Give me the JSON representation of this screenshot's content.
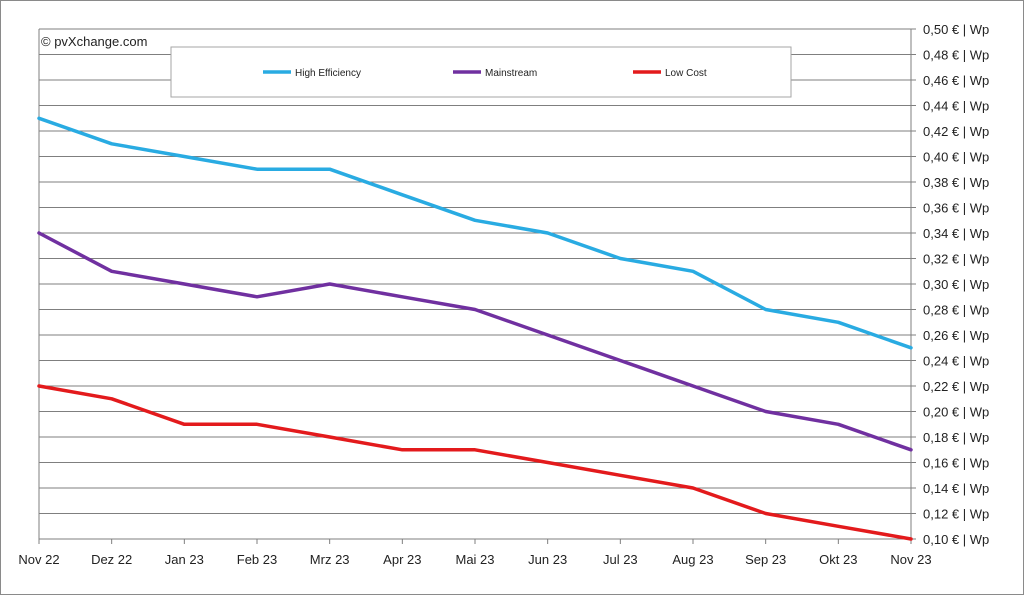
{
  "watermark": "© pvXchange.com",
  "chart_data": {
    "type": "line",
    "categories": [
      "Nov 22",
      "Dez 22",
      "Jan 23",
      "Feb 23",
      "Mrz 23",
      "Apr 23",
      "Mai 23",
      "Jun 23",
      "Jul 23",
      "Aug 23",
      "Sep 23",
      "Okt 23",
      "Nov 23"
    ],
    "y_ticks": [
      "0,10 € | Wp",
      "0,12 € | Wp",
      "0,14 € | Wp",
      "0,16 € | Wp",
      "0,18 € | Wp",
      "0,20 € | Wp",
      "0,22 € | Wp",
      "0,24 € | Wp",
      "0,26 € | Wp",
      "0,28 € | Wp",
      "0,30 € | Wp",
      "0,32 € | Wp",
      "0,34 € | Wp",
      "0,36 € | Wp",
      "0,38 € | Wp",
      "0,40 € | Wp",
      "0,42 € | Wp",
      "0,44 € | Wp",
      "0,46 € | Wp",
      "0,48 € | Wp",
      "0,50 € | Wp"
    ],
    "ylim": [
      0.1,
      0.5
    ],
    "y_axis_side": "right",
    "grid": true,
    "legend_position": "top",
    "series": [
      {
        "name": "High Efficiency",
        "color": "#29abe2",
        "values": [
          0.43,
          0.41,
          0.4,
          0.39,
          0.39,
          0.37,
          0.35,
          0.34,
          0.32,
          0.31,
          0.28,
          0.27,
          0.25
        ]
      },
      {
        "name": "Mainstream",
        "color": "#7030a0",
        "values": [
          0.34,
          0.31,
          0.3,
          0.29,
          0.3,
          0.29,
          0.28,
          0.26,
          0.24,
          0.22,
          0.2,
          0.19,
          0.17
        ]
      },
      {
        "name": "Low Cost",
        "color": "#e31a1c",
        "values": [
          0.22,
          0.21,
          0.19,
          0.19,
          0.18,
          0.17,
          0.17,
          0.16,
          0.15,
          0.14,
          0.12,
          0.11,
          0.1
        ]
      }
    ]
  }
}
